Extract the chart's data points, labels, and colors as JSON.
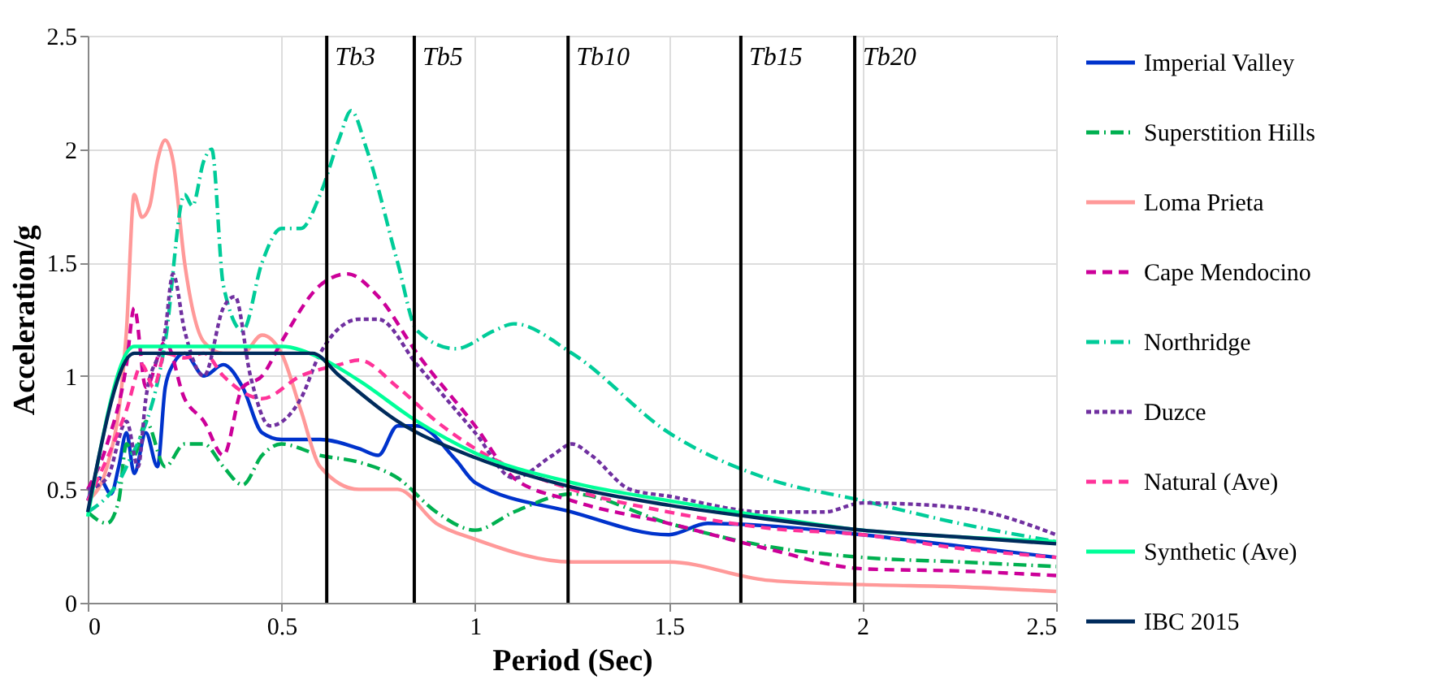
{
  "chart_data": {
    "type": "line",
    "xlabel": "Period (Sec)",
    "ylabel": "Acceleration/g",
    "xlim": [
      0,
      2.5
    ],
    "ylim": [
      0,
      2.5
    ],
    "xticks": [
      0,
      0.5,
      1,
      1.5,
      2,
      2.5
    ],
    "yticks": [
      0,
      0.5,
      1,
      1.5,
      2,
      2.5
    ],
    "grid": true,
    "legend": "right",
    "series": [
      {
        "name": "Imperial Valley",
        "color": "#0033cc",
        "line_style": "solid",
        "x": [
          0,
          0.03,
          0.06,
          0.08,
          0.1,
          0.12,
          0.15,
          0.18,
          0.2,
          0.22,
          0.25,
          0.3,
          0.35,
          0.4,
          0.45,
          0.5,
          0.6,
          0.7,
          0.75,
          0.8,
          0.85,
          0.95,
          1.0,
          1.25,
          1.5,
          1.6,
          1.75,
          2.0,
          2.25,
          2.5
        ],
        "values": [
          0.45,
          0.55,
          0.48,
          0.6,
          0.75,
          0.57,
          0.75,
          0.6,
          0.95,
          1.05,
          1.1,
          1.0,
          1.05,
          0.95,
          0.75,
          0.72,
          0.72,
          0.68,
          0.65,
          0.78,
          0.78,
          0.63,
          0.53,
          0.4,
          0.3,
          0.35,
          0.34,
          0.3,
          0.25,
          0.2
        ]
      },
      {
        "name": "Superstition Hills",
        "color": "#00b050",
        "line_style": "dashdot",
        "x": [
          0,
          0.05,
          0.08,
          0.1,
          0.12,
          0.15,
          0.2,
          0.25,
          0.3,
          0.35,
          0.4,
          0.45,
          0.5,
          0.6,
          0.7,
          0.8,
          0.9,
          1.0,
          1.1,
          1.25,
          1.5,
          1.75,
          2.0,
          2.25,
          2.5
        ],
        "values": [
          0.4,
          0.35,
          0.45,
          0.7,
          0.65,
          0.8,
          0.6,
          0.7,
          0.7,
          0.6,
          0.52,
          0.65,
          0.7,
          0.65,
          0.62,
          0.55,
          0.4,
          0.32,
          0.4,
          0.48,
          0.35,
          0.25,
          0.2,
          0.18,
          0.16
        ]
      },
      {
        "name": "Loma Prieta",
        "color": "#ff9999",
        "line_style": "solid",
        "x": [
          0,
          0.05,
          0.1,
          0.12,
          0.14,
          0.16,
          0.18,
          0.2,
          0.22,
          0.25,
          0.3,
          0.35,
          0.4,
          0.45,
          0.5,
          0.55,
          0.6,
          0.7,
          0.8,
          0.9,
          1.0,
          1.25,
          1.5,
          1.75,
          2.0,
          2.25,
          2.5
        ],
        "values": [
          0.45,
          0.6,
          1.2,
          1.8,
          1.7,
          1.75,
          1.95,
          2.04,
          1.95,
          1.5,
          1.15,
          1.1,
          1.1,
          1.18,
          1.1,
          0.85,
          0.6,
          0.5,
          0.5,
          0.35,
          0.28,
          0.18,
          0.18,
          0.1,
          0.08,
          0.07,
          0.05
        ]
      },
      {
        "name": "Cape Mendocino",
        "color": "#cc0099",
        "line_style": "dashed",
        "x": [
          0,
          0.05,
          0.1,
          0.12,
          0.15,
          0.2,
          0.25,
          0.3,
          0.35,
          0.4,
          0.45,
          0.5,
          0.6,
          0.67,
          0.75,
          0.85,
          1.0,
          1.1,
          1.25,
          1.5,
          1.75,
          2.0,
          2.25,
          2.5
        ],
        "values": [
          0.5,
          0.7,
          1.05,
          1.3,
          0.95,
          1.15,
          0.9,
          0.8,
          0.65,
          0.95,
          1.0,
          1.15,
          1.4,
          1.45,
          1.35,
          1.1,
          0.78,
          0.55,
          0.45,
          0.35,
          0.24,
          0.15,
          0.14,
          0.12
        ]
      },
      {
        "name": "Northridge",
        "color": "#00cc99",
        "line_style": "dashdot",
        "x": [
          0,
          0.1,
          0.2,
          0.25,
          0.27,
          0.3,
          0.32,
          0.35,
          0.4,
          0.45,
          0.5,
          0.55,
          0.6,
          0.65,
          0.68,
          0.72,
          0.8,
          0.85,
          0.95,
          1.05,
          1.1,
          1.25,
          1.5,
          1.75,
          2.0,
          2.25,
          2.5
        ],
        "values": [
          0.4,
          0.6,
          1.15,
          1.8,
          1.75,
          1.95,
          2.0,
          1.4,
          1.2,
          1.5,
          1.65,
          1.65,
          1.8,
          2.05,
          2.17,
          2.0,
          1.5,
          1.2,
          1.12,
          1.2,
          1.23,
          1.1,
          0.75,
          0.55,
          0.45,
          0.35,
          0.27
        ]
      },
      {
        "name": "Duzce",
        "color": "#7030a0",
        "line_style": "dotted",
        "x": [
          0,
          0.05,
          0.1,
          0.13,
          0.15,
          0.2,
          0.22,
          0.25,
          0.3,
          0.35,
          0.38,
          0.42,
          0.47,
          0.55,
          0.6,
          0.7,
          0.75,
          0.85,
          1.0,
          1.1,
          1.2,
          1.25,
          1.3,
          1.4,
          1.5,
          1.75,
          1.9,
          2.0,
          2.25,
          2.5
        ],
        "values": [
          0.5,
          0.55,
          0.8,
          0.6,
          0.9,
          1.2,
          1.45,
          1.2,
          1.0,
          1.3,
          1.35,
          1.0,
          0.78,
          0.9,
          1.1,
          1.25,
          1.25,
          1.05,
          0.75,
          0.55,
          0.65,
          0.7,
          0.65,
          0.5,
          0.47,
          0.4,
          0.4,
          0.44,
          0.42,
          0.3
        ]
      },
      {
        "name": "Natural (Ave)",
        "color": "#ff3399",
        "line_style": "dashed",
        "x": [
          0,
          0.1,
          0.14,
          0.17,
          0.2,
          0.25,
          0.3,
          0.35,
          0.45,
          0.55,
          0.65,
          0.7,
          0.8,
          0.9,
          1.0,
          1.25,
          1.5,
          1.75,
          2.0,
          2.25,
          2.5
        ],
        "values": [
          0.45,
          0.85,
          1.05,
          0.95,
          1.1,
          1.08,
          1.1,
          1.0,
          0.9,
          1.0,
          1.05,
          1.07,
          0.95,
          0.8,
          0.68,
          0.5,
          0.4,
          0.33,
          0.3,
          0.24,
          0.2
        ]
      },
      {
        "name": "Synthetic (Ave)",
        "color": "#00ff99",
        "line_style": "solid",
        "x": [
          0,
          0.12,
          0.3,
          0.5,
          0.6,
          0.7,
          0.85,
          1.0,
          1.25,
          1.5,
          1.75,
          2.0,
          2.25,
          2.5
        ],
        "values": [
          0.38,
          1.13,
          1.13,
          1.13,
          1.08,
          0.98,
          0.8,
          0.66,
          0.53,
          0.45,
          0.38,
          0.32,
          0.29,
          0.27
        ]
      },
      {
        "name": "IBC 2015",
        "color": "#002b5c",
        "line_style": "solid",
        "x": [
          0,
          0.12,
          0.58,
          0.65,
          0.8,
          1.0,
          1.25,
          1.5,
          1.75,
          2.0,
          2.25,
          2.5
        ],
        "values": [
          0.4,
          1.1,
          1.1,
          1.0,
          0.8,
          0.64,
          0.51,
          0.43,
          0.37,
          0.32,
          0.29,
          0.26
        ]
      }
    ],
    "ref_lines": [
      {
        "axis": "x",
        "value": 0.617,
        "label": "Tb3",
        "color": "#000000"
      },
      {
        "axis": "x",
        "value": 0.843,
        "label": "Tb5",
        "color": "#000000"
      },
      {
        "axis": "x",
        "value": 1.24,
        "label": "Tb10",
        "color": "#000000"
      },
      {
        "axis": "x",
        "value": 1.686,
        "label": "Tb15",
        "color": "#000000"
      },
      {
        "axis": "x",
        "value": 1.98,
        "label": "Tb20",
        "color": "#000000"
      }
    ]
  }
}
